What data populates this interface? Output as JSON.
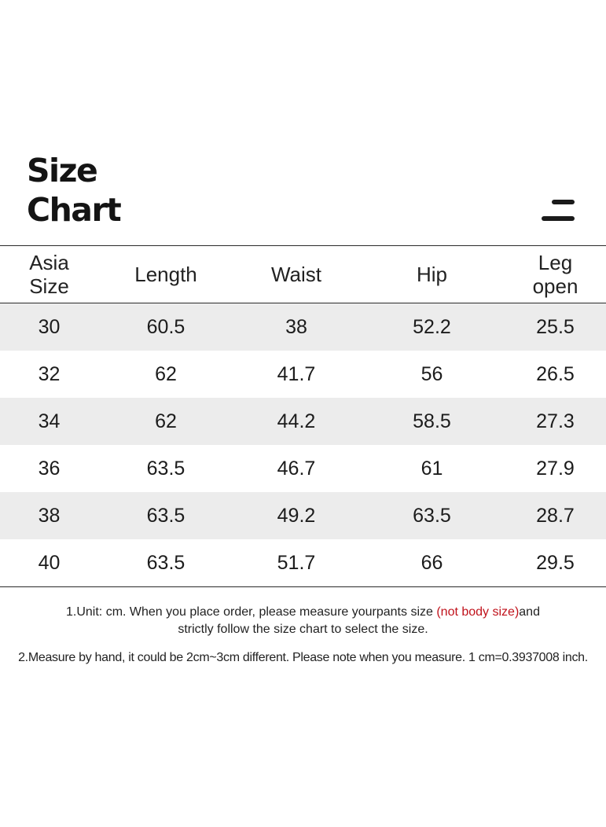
{
  "title": {
    "line1": "Size",
    "line2": "Chart"
  },
  "headers": [
    [
      "Asia",
      "Size"
    ],
    [
      "Length"
    ],
    [
      "Waist"
    ],
    [
      "Hip"
    ],
    [
      "Leg",
      "open"
    ]
  ],
  "rows": [
    [
      "30",
      "60.5",
      "38",
      "52.2",
      "25.5"
    ],
    [
      "32",
      "62",
      "41.7",
      "56",
      "26.5"
    ],
    [
      "34",
      "62",
      "44.2",
      "58.5",
      "27.3"
    ],
    [
      "36",
      "63.5",
      "46.7",
      "61",
      "27.9"
    ],
    [
      "38",
      "63.5",
      "49.2",
      "63.5",
      "28.7"
    ],
    [
      "40",
      "63.5",
      "51.7",
      "66",
      "29.5"
    ]
  ],
  "notes": {
    "note1_part1": "1.Unit: cm. When you place order, please measure yourpants size ",
    "note1_highlight": "(not body size)",
    "note1_part2": "and",
    "note1_line2": "strictly follow the size chart to select the size.",
    "note2": "2.Measure by hand, it could be 2cm~3cm different. Please note when you measure. 1 cm=0.3937008 inch."
  },
  "colors": {
    "highlight": "#c0121b",
    "stripe": "#ececec"
  },
  "icons": {
    "menu": "menu-icon"
  }
}
